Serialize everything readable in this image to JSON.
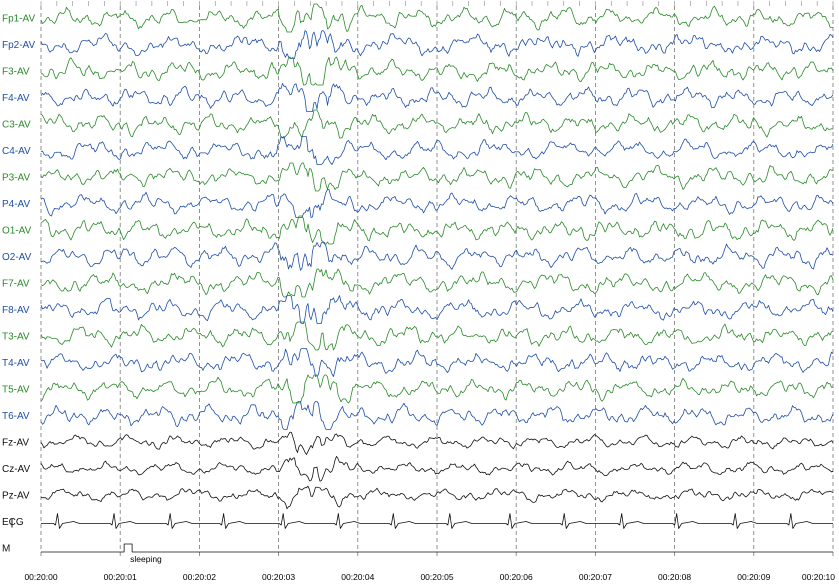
{
  "chart_data": {
    "type": "line",
    "title": "",
    "xlabel": "",
    "ylabel": "",
    "x_ticks": [
      "00:20:00",
      "00:20:01",
      "00:20:02",
      "00:20:03",
      "00:20:04",
      "00:20:05",
      "00:20:06",
      "00:20:07",
      "00:20:08",
      "00:20:09",
      "00:20:10"
    ],
    "grid": true,
    "series": [
      {
        "name": "Fp1-AV",
        "color": "#2b8a2b"
      },
      {
        "name": "Fp2-AV",
        "color": "#1f4fa8"
      },
      {
        "name": "F3-AV",
        "color": "#2b8a2b"
      },
      {
        "name": "F4-AV",
        "color": "#1f4fa8"
      },
      {
        "name": "C3-AV",
        "color": "#2b8a2b"
      },
      {
        "name": "C4-AV",
        "color": "#1f4fa8"
      },
      {
        "name": "P3-AV",
        "color": "#2b8a2b"
      },
      {
        "name": "P4-AV",
        "color": "#1f4fa8"
      },
      {
        "name": "O1-AV",
        "color": "#2b8a2b"
      },
      {
        "name": "O2-AV",
        "color": "#1f4fa8"
      },
      {
        "name": "F7-AV",
        "color": "#2b8a2b"
      },
      {
        "name": "F8-AV",
        "color": "#1f4fa8"
      },
      {
        "name": "T3-AV",
        "color": "#2b8a2b"
      },
      {
        "name": "T4-AV",
        "color": "#1f4fa8"
      },
      {
        "name": "T5-AV",
        "color": "#2b8a2b"
      },
      {
        "name": "T6-AV",
        "color": "#1f4fa8"
      },
      {
        "name": "Fz-AV",
        "color": "#111111"
      },
      {
        "name": "Cz-AV",
        "color": "#111111"
      },
      {
        "name": "Pz-AV",
        "color": "#111111"
      },
      {
        "name": "ECG",
        "color": "#111111"
      },
      {
        "name": "M",
        "color": "#111111"
      }
    ],
    "annotations": [
      {
        "text": "sleeping",
        "time": "00:20:01"
      }
    ]
  }
}
